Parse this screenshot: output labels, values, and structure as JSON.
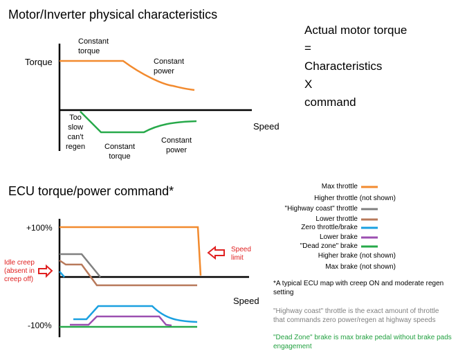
{
  "top_chart": {
    "title": "Motor/Inverter physical characteristics",
    "y_label": "Torque",
    "x_label": "Speed",
    "annotations": {
      "constant_torque_top": [
        "Constant",
        "torque"
      ],
      "constant_power_top": [
        "Constant",
        "power"
      ],
      "too_slow": [
        "Too",
        "slow",
        "can't",
        "regen"
      ],
      "constant_torque_bottom": [
        "Constant",
        "torque"
      ],
      "constant_power_bottom": [
        "Constant",
        "power"
      ]
    },
    "colors": {
      "motor": "#f28a2e",
      "regen": "#27a94a",
      "axis": "#000000"
    }
  },
  "equation": {
    "line1": "Actual motor torque",
    "line2": "=",
    "line3": "Characteristics",
    "line4": "X",
    "line5": "command"
  },
  "bottom_chart": {
    "title": "ECU torque/power command*",
    "y_tick_top": "+100%",
    "y_tick_bottom": "-100%",
    "x_label": "Speed",
    "speed_limit": [
      "Speed",
      "limit"
    ],
    "idle_creep": [
      "Idle creep",
      "(absent in",
      "creep off)"
    ]
  },
  "legend": {
    "items": [
      {
        "label": "Max throttle",
        "color": "#f28a2e",
        "swatch": true
      },
      {
        "label": "Higher throttle (not shown)",
        "swatch": false
      },
      {
        "label": "\"Highway coast\" throttle",
        "color": "#808080",
        "swatch": true
      },
      {
        "label": "Lower throttle",
        "color": "#b8795a",
        "swatch": true
      },
      {
        "label": "Zero throttle/brake",
        "color": "#1aa0e0",
        "swatch": true
      },
      {
        "label": "Lower brake",
        "color": "#9b4fb0",
        "swatch": true
      },
      {
        "label": "\"Dead zone\" brake",
        "color": "#27a94a",
        "swatch": true
      },
      {
        "label": "Higher brake (not shown)",
        "swatch": false
      },
      {
        "label": "Max brake (not shown)",
        "swatch": false
      }
    ]
  },
  "notes": {
    "ecu_map_1": "*A typical ECU map with creep ON and moderate regen",
    "ecu_map_2": "setting",
    "highway_1": "\"Highway coast\" throttle is the exact amount of throttle",
    "highway_2": "that commands zero power/regen at highway speeds",
    "deadzone_1": "\"Dead Zone\" brake is max brake pedal without brake pads",
    "deadzone_2": "engagement"
  }
}
